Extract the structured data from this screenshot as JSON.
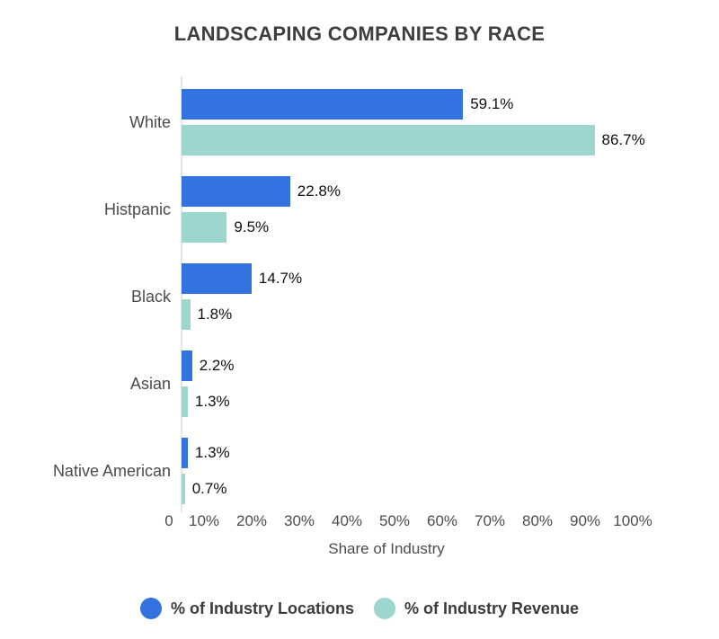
{
  "title": "LANDSCAPING COMPANIES BY RACE",
  "colors": {
    "locations_series": "#3273e0",
    "revenue_series": "#9dd6ce",
    "axis_line": "#e2e6e6",
    "title_text": "#3e3e3e",
    "category_text": "#4b4b4b",
    "value_text": "#101010",
    "tick_text": "#4c4c4c"
  },
  "chart_data": {
    "type": "bar",
    "orientation": "horizontal",
    "title": "LANDSCAPING COMPANIES BY RACE",
    "categories": [
      "White",
      "Histpanic",
      "Black",
      "Asian",
      "Native American"
    ],
    "series": [
      {
        "name": "% of Industry Locations",
        "color": "#3273e0",
        "values": [
          59.1,
          22.8,
          14.7,
          2.2,
          1.3
        ],
        "labels": [
          "59.1%",
          "22.8%",
          "14.7%",
          "2.2%",
          "1.3%"
        ]
      },
      {
        "name": "% of Industry Revenue",
        "color": "#9dd6ce",
        "values": [
          86.7,
          9.5,
          1.8,
          1.3,
          0.7
        ],
        "labels": [
          "86.7%",
          "9.5%",
          "1.8%",
          "1.3%",
          "0.7%"
        ]
      }
    ],
    "xlabel": "Share of Industry",
    "xlim": [
      0,
      100
    ],
    "x_ticks": [
      0,
      10,
      20,
      30,
      40,
      50,
      60,
      70,
      80,
      90,
      100
    ],
    "x_tick_labels": [
      "0",
      "10%",
      "20%",
      "30%",
      "40%",
      "50%",
      "60%",
      "70%",
      "80%",
      "90%",
      "100%"
    ],
    "grid": false,
    "legend_position": "bottom"
  },
  "legend": {
    "items": [
      {
        "label": "% of Industry Locations",
        "color": "#3273e0"
      },
      {
        "label": "% of Industry Revenue",
        "color": "#9dd6ce"
      }
    ]
  }
}
